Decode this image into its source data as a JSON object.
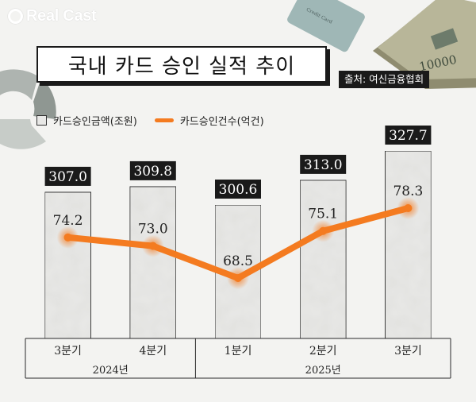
{
  "brand": {
    "name": "Real Cast"
  },
  "header": {
    "title": "국내 카드 승인 실적 추이",
    "source": "출처: 여신금융협회"
  },
  "legend": {
    "amount": "카드승인금액(조원)",
    "count": "카드승인건수(억건)"
  },
  "decor": {
    "card_text": "Credit Card",
    "bill_text": "10000"
  },
  "colors": {
    "line": "#f47b20",
    "bar_fill": "#e9e9e7",
    "label_bg": "#1a1a1a",
    "background": "#f3f3f1"
  },
  "chart_data": {
    "type": "bar",
    "categories": [
      "3분기",
      "4분기",
      "1분기",
      "2분기",
      "3분기"
    ],
    "groups": [
      {
        "label": "2024년",
        "span": [
          0,
          1
        ]
      },
      {
        "label": "2025년",
        "span": [
          2,
          4
        ]
      }
    ],
    "series": [
      {
        "name": "카드승인금액(조원)",
        "type": "bar",
        "values": [
          307.0,
          309.8,
          300.6,
          313.0,
          327.7
        ],
        "labels": [
          "307.0",
          "309.8",
          "300.6",
          "313.0",
          "327.7"
        ]
      },
      {
        "name": "카드승인건수(억건)",
        "type": "line",
        "values": [
          74.2,
          73.0,
          68.5,
          75.1,
          78.3
        ],
        "labels": [
          "74.2",
          "73.0",
          "68.5",
          "75.1",
          "78.3"
        ]
      }
    ],
    "bar_scale": [
      250,
      330
    ],
    "line_scale": [
      62,
      84
    ],
    "grid": false,
    "legend_position": "top-left"
  }
}
